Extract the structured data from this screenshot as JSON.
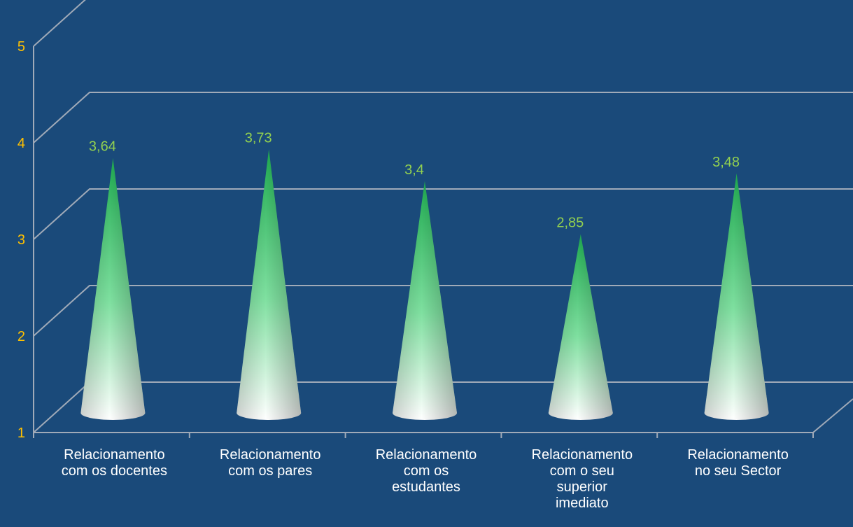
{
  "chart_data": {
    "type": "bar",
    "style": "3d-cone",
    "categories": [
      [
        "Relacionamento",
        "com os docentes"
      ],
      [
        "Relacionamento",
        "com os pares"
      ],
      [
        "Relacionamento",
        "com os",
        "estudantes"
      ],
      [
        "Relacionamento",
        "com o seu",
        "superior",
        "imediato"
      ],
      [
        "Relacionamento",
        "no seu Sector"
      ]
    ],
    "values": [
      3.64,
      3.73,
      3.4,
      2.85,
      3.48
    ],
    "value_labels": [
      "3,64",
      "3,73",
      "3,4",
      "2,85",
      "3,48"
    ],
    "yticks": [
      "1",
      "2",
      "3",
      "4",
      "5"
    ],
    "ylim": [
      1,
      5
    ],
    "grid": true,
    "colors": {
      "background": "#1a4a7a",
      "gridline": "#a0aab8",
      "cone_top": "#1faa50",
      "cone_bottom": "#ffffff",
      "value_label": "#92d050",
      "ytick": "#ffc000",
      "xlabel": "#ffffff"
    }
  }
}
